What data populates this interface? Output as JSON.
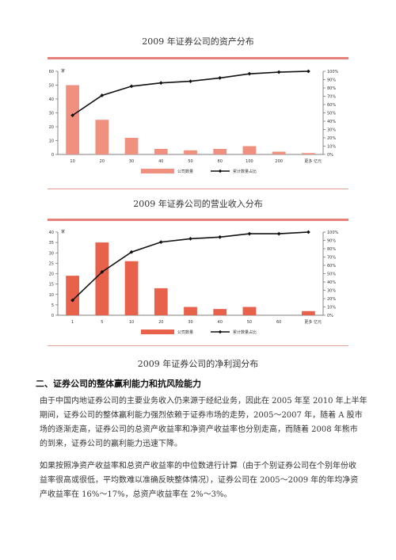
{
  "chart_data": [
    {
      "type": "bar",
      "title": "2009 年证券公司的资产分布",
      "y_unit": "家",
      "x_unit": "亿元",
      "categories": [
        "10",
        "20",
        "30",
        "40",
        "50",
        "80",
        "100",
        "200",
        "更多"
      ],
      "ylim": [
        0,
        60
      ],
      "y_ticks": [
        "0",
        "10",
        "20",
        "30",
        "40",
        "50",
        "60"
      ],
      "y2lim": [
        0,
        100
      ],
      "y2_ticks": [
        "0%",
        "10%",
        "20%",
        "30%",
        "40%",
        "50%",
        "60%",
        "70%",
        "80%",
        "90%",
        "100%"
      ],
      "series": [
        {
          "name": "公司数量",
          "kind": "bar",
          "color": "#f0907e",
          "values": [
            50,
            25,
            12,
            4,
            3,
            4,
            6,
            2,
            1
          ]
        },
        {
          "name": "累计数量占比",
          "kind": "line",
          "color": "#111111",
          "values": [
            47,
            71,
            82,
            86,
            88,
            92,
            97,
            99,
            100
          ]
        }
      ],
      "legend": "bottom"
    },
    {
      "type": "bar",
      "title": "2009 年证券公司的营业收入分布",
      "y_unit": "家",
      "x_unit": "亿元",
      "categories": [
        "1",
        "5",
        "10",
        "20",
        "30",
        "40",
        "50",
        "60",
        "更多"
      ],
      "ylim": [
        0,
        40
      ],
      "y_ticks": [
        "0",
        "5",
        "10",
        "15",
        "20",
        "25",
        "30",
        "35",
        "40"
      ],
      "y2lim": [
        0,
        100
      ],
      "y2_ticks": [
        "0%",
        "10%",
        "20%",
        "30%",
        "40%",
        "50%",
        "60%",
        "70%",
        "80%",
        "90%",
        "100%"
      ],
      "series": [
        {
          "name": "公司数量",
          "kind": "bar",
          "color": "#e8614a",
          "values": [
            19,
            35,
            26,
            13,
            4,
            3,
            4,
            0,
            2
          ]
        },
        {
          "name": "累计数量占比",
          "kind": "line",
          "color": "#111111",
          "values": [
            18,
            52,
            76,
            88,
            92,
            94,
            98,
            98,
            100
          ]
        }
      ],
      "legend": "bottom"
    }
  ],
  "third_chart_title": "2009 年证券公司的净利润分布",
  "section": {
    "heading": "二、证券公司的整体赢利能力和抗风险能力",
    "paragraphs": [
      {
        "lines": [
          "由于中国内地证券公司的主要业务收入仍来源于经纪业务，因此在 2005 年至 2010 年上半年",
          "期间，证券公司的整体赢利能力强烈依赖于证券市场的走势，2005～2007 年，随着 A 股市",
          "场的逐渐走高，证券公司的总资产收益率和净资产收益率也分别走高，而随着 2008 年熊市",
          "的到来，证券公司的赢利能力迅速下降。"
        ]
      },
      {
        "lines": [
          "如果按照净资产收益率和总资产收益率的中位数进行计算（由于个别证券公司在个别年份收",
          "益率很高或很低，平均数难以准确反映整体情况），证券公司在 2005～2009 年的年均净资",
          "产收益率在 16%～17%，总资产收益率在 2%～3%。"
        ]
      }
    ]
  }
}
